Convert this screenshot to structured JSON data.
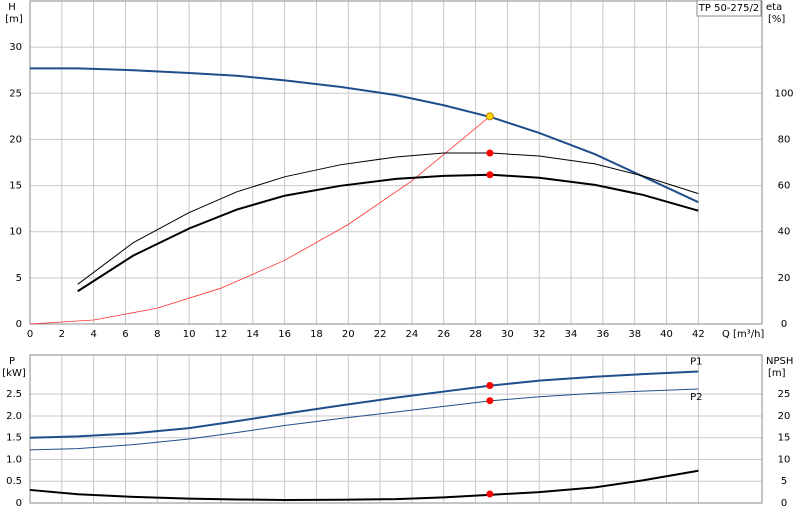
{
  "chart_data": [
    {
      "type": "line",
      "title": "TP 50-275/2",
      "y_label": "H",
      "y_unit": "[m]",
      "y2_label": "eta",
      "y2_unit": "[%]",
      "x_label": "Q [m³/h]",
      "xlim": [
        0,
        46
      ],
      "xticks": [
        0,
        2,
        4,
        6,
        8,
        10,
        12,
        14,
        16,
        18,
        20,
        22,
        24,
        26,
        28,
        30,
        32,
        34,
        36,
        38,
        40,
        42
      ],
      "ylim": [
        0,
        35
      ],
      "yticks": [
        0,
        5,
        10,
        15,
        20,
        25,
        30
      ],
      "y2lim": [
        0,
        140
      ],
      "y2ticks": [
        0,
        20,
        40,
        60,
        80,
        100
      ],
      "grid": true,
      "series": [
        {
          "color": "#1f4e8c",
          "width": 2,
          "x": [
            0,
            3,
            6.5,
            10,
            13,
            16,
            19.5,
            23,
            26,
            29,
            32,
            35.5,
            38.5,
            42
          ],
          "values": [
            27.7,
            27.7,
            27.5,
            27.2,
            26.9,
            26.4,
            25.7,
            24.8,
            23.7,
            22.4,
            20.7,
            18.4,
            16,
            13.2
          ]
        },
        {
          "color": "#ff3030",
          "width": 0.8,
          "x": [
            0,
            4,
            8,
            12,
            16,
            20,
            24,
            28.9
          ],
          "values": [
            0,
            0.43,
            1.72,
            3.88,
            6.9,
            10.78,
            15.52,
            22.5
          ]
        },
        {
          "color": "#000000",
          "width": 1,
          "axis": "y2",
          "x": [
            3,
            6.5,
            10,
            13,
            16,
            19.5,
            23,
            26,
            29,
            32,
            35.5,
            38.5,
            42
          ],
          "values": [
            17.2,
            35.3,
            48.3,
            57.3,
            63.8,
            69,
            72.4,
            74.1,
            74.1,
            72.8,
            69.4,
            64.2,
            56.5
          ]
        },
        {
          "color": "#000000",
          "width": 2,
          "axis": "y2",
          "x": [
            3,
            6.5,
            10,
            13,
            16,
            19.5,
            23,
            26,
            29,
            32,
            35.5,
            38.5,
            42
          ],
          "values": [
            14.2,
            29.7,
            41.4,
            49.6,
            55.6,
            59.9,
            62.9,
            64.2,
            64.7,
            63.4,
            60.3,
            56,
            49.1
          ]
        },
        {
          "color": "#ff0000",
          "marker": true,
          "axis": "y2",
          "x": [
            28.9
          ],
          "values": [
            74.1
          ]
        },
        {
          "color": "#ff0000",
          "marker": true,
          "axis": "y2",
          "x": [
            28.9
          ],
          "values": [
            64.7
          ]
        },
        {
          "color": "#ffd700",
          "marker": true,
          "x": [
            28.9
          ],
          "values": [
            22.5
          ]
        }
      ]
    },
    {
      "type": "line",
      "y_label": "P",
      "y_unit": "[kW]",
      "y2_label": "NPSH",
      "y2_unit": "[m]",
      "xlim": [
        0,
        46
      ],
      "xticks": [
        0,
        2,
        4,
        6,
        8,
        10,
        12,
        14,
        16,
        18,
        20,
        22,
        24,
        26,
        28,
        30,
        32,
        34,
        36,
        38,
        40,
        42
      ],
      "ylim": [
        0,
        3.4
      ],
      "yticks": [
        0,
        0.5,
        {
          "value": 1,
          "label": "1.0"
        },
        1.5,
        {
          "value": 2,
          "label": "2.0"
        },
        2.5
      ],
      "y2lim": [
        0,
        34
      ],
      "y2ticks": [
        0,
        5,
        10,
        15,
        20,
        25
      ],
      "grid": true,
      "series": [
        {
          "name": "P1",
          "color": "#1f4e8c",
          "width": 2,
          "x": [
            0,
            3,
            6.5,
            10,
            13,
            16,
            19.5,
            23,
            26,
            29,
            32,
            35.5,
            38.5,
            42
          ],
          "values": [
            1.5,
            1.53,
            1.6,
            1.72,
            1.88,
            2.05,
            2.24,
            2.42,
            2.56,
            2.7,
            2.81,
            2.9,
            2.96,
            3.02
          ]
        },
        {
          "name": "P2",
          "color": "#1f4e8c",
          "width": 1,
          "x": [
            0,
            3,
            6.5,
            10,
            13,
            16,
            19.5,
            23,
            26,
            29,
            32,
            35.5,
            38.5,
            42
          ],
          "values": [
            1.22,
            1.25,
            1.34,
            1.47,
            1.62,
            1.78,
            1.94,
            2.09,
            2.22,
            2.35,
            2.44,
            2.52,
            2.57,
            2.62
          ]
        },
        {
          "color": "#000000",
          "width": 2,
          "axis": "y2",
          "x": [
            0,
            3,
            6.5,
            10,
            13,
            16,
            19.5,
            23,
            26,
            29,
            32,
            35.5,
            38.5,
            42
          ],
          "values": [
            3,
            2,
            1.4,
            1,
            0.8,
            0.7,
            0.75,
            0.9,
            1.3,
            1.9,
            2.5,
            3.6,
            5.2,
            7.4
          ]
        },
        {
          "color": "#ff0000",
          "marker": true,
          "x": [
            28.9
          ],
          "values": [
            2.7
          ]
        },
        {
          "color": "#ff0000",
          "marker": true,
          "x": [
            28.9
          ],
          "values": [
            2.35
          ]
        },
        {
          "color": "#ff0000",
          "marker": true,
          "axis": "y2",
          "x": [
            28.9
          ],
          "values": [
            2.06
          ]
        }
      ]
    }
  ]
}
